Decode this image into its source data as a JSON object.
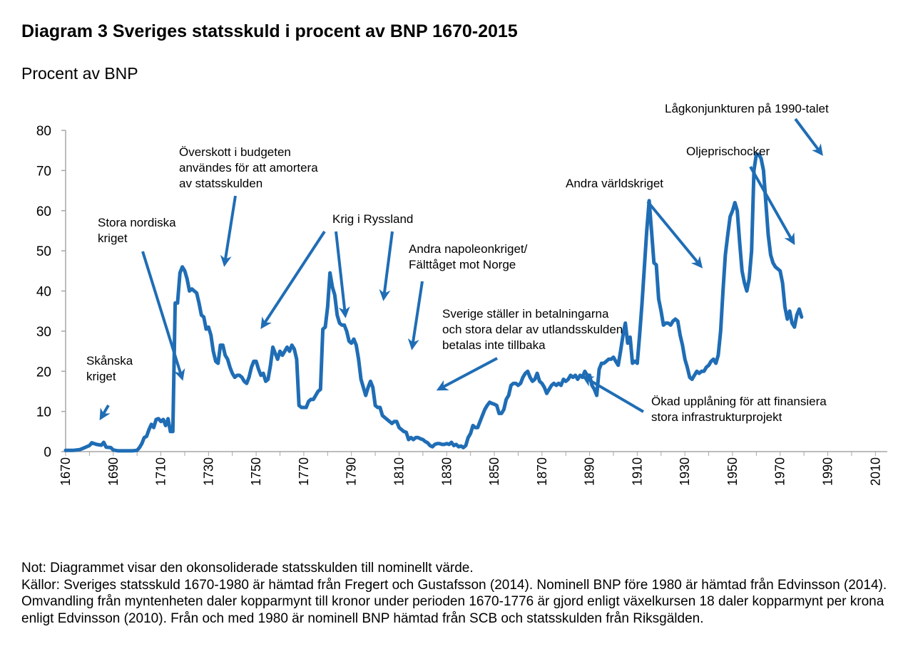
{
  "title": "Diagram 3 Sveriges statsskuld i procent av BNP 1670-2015",
  "unit_label": "Procent av BNP",
  "note": "Not: Diagrammet visar den okonsoliderade statsskulden till nominellt värde.",
  "sources": "Källor: Sveriges statsskuld 1670-1980 är hämtad från Fregert och Gustafsson (2014). Nominell BNP före 1980 är hämtad från Edvinsson (2014). Omvandling från myntenheten daler kopparmynt till kronor under perioden 1670-1776 är gjord enligt växelkursen 18 daler kopparmynt per krona enligt Edvinsson (2010). Från och med 1980 är nominell BNP hämtad från SCB och statsskulden från Riksgälden.",
  "colors": {
    "line": "#1F6DB5",
    "axis": "#A6A6A6",
    "text": "#000000"
  },
  "chart_data": {
    "type": "line",
    "title": "Diagram 3 Sveriges statsskuld i procent av BNP 1670-2015",
    "xlabel": "",
    "ylabel": "Procent av BNP",
    "xlim": [
      1670,
      2015
    ],
    "ylim": [
      0,
      80
    ],
    "yticks": [
      0,
      10,
      20,
      30,
      40,
      50,
      60,
      70,
      80
    ],
    "xticks": [
      1670,
      1690,
      1710,
      1730,
      1750,
      1770,
      1790,
      1810,
      1830,
      1850,
      1870,
      1890,
      1910,
      1930,
      1950,
      1970,
      1990,
      2010
    ],
    "grid": false,
    "series": [
      {
        "color": "#1F6DB5",
        "points": [
          [
            1670,
            0.3
          ],
          [
            1673,
            0.3
          ],
          [
            1676,
            0.5
          ],
          [
            1678,
            1
          ],
          [
            1680,
            1.5
          ],
          [
            1681,
            2.2
          ],
          [
            1683,
            1.8
          ],
          [
            1685,
            1.6
          ],
          [
            1686,
            2.3
          ],
          [
            1687,
            1.1
          ],
          [
            1689,
            1
          ],
          [
            1690,
            0.4
          ],
          [
            1692,
            0.2
          ],
          [
            1695,
            0.2
          ],
          [
            1698,
            0.2
          ],
          [
            1700,
            0.3
          ],
          [
            1701,
            1
          ],
          [
            1702,
            2
          ],
          [
            1703,
            3.5
          ],
          [
            1704,
            3.8
          ],
          [
            1705,
            5.5
          ],
          [
            1706,
            6.8
          ],
          [
            1707,
            6
          ],
          [
            1708,
            8
          ],
          [
            1709,
            8.2
          ],
          [
            1710,
            7.5
          ],
          [
            1711,
            8
          ],
          [
            1712,
            6.5
          ],
          [
            1713,
            8.2
          ],
          [
            1714,
            5
          ],
          [
            1715,
            5
          ],
          [
            1716,
            37
          ],
          [
            1717,
            37
          ],
          [
            1718,
            44.5
          ],
          [
            1719,
            46
          ],
          [
            1720,
            45
          ],
          [
            1721,
            43
          ],
          [
            1722,
            40
          ],
          [
            1723,
            40.5
          ],
          [
            1724,
            40
          ],
          [
            1725,
            39.5
          ],
          [
            1726,
            37
          ],
          [
            1727,
            34
          ],
          [
            1728,
            33.5
          ],
          [
            1729,
            30.5
          ],
          [
            1730,
            31
          ],
          [
            1731,
            29
          ],
          [
            1732,
            25
          ],
          [
            1733,
            22.5
          ],
          [
            1734,
            22
          ],
          [
            1735,
            26.5
          ],
          [
            1736,
            26.5
          ],
          [
            1737,
            24
          ],
          [
            1738,
            23
          ],
          [
            1739,
            21
          ],
          [
            1740,
            19.5
          ],
          [
            1741,
            18.5
          ],
          [
            1742,
            19
          ],
          [
            1743,
            19
          ],
          [
            1744,
            18.5
          ],
          [
            1745,
            17.5
          ],
          [
            1746,
            17
          ],
          [
            1747,
            18.5
          ],
          [
            1748,
            21
          ],
          [
            1749,
            22.5
          ],
          [
            1750,
            22.5
          ],
          [
            1751,
            20.5
          ],
          [
            1752,
            19
          ],
          [
            1753,
            19.5
          ],
          [
            1754,
            17.5
          ],
          [
            1755,
            18
          ],
          [
            1756,
            21.5
          ],
          [
            1757,
            26
          ],
          [
            1758,
            24.5
          ],
          [
            1759,
            23
          ],
          [
            1760,
            25
          ],
          [
            1761,
            24
          ],
          [
            1762,
            25
          ],
          [
            1763,
            26
          ],
          [
            1764,
            25
          ],
          [
            1765,
            26.5
          ],
          [
            1766,
            25.5
          ],
          [
            1767,
            23
          ],
          [
            1768,
            11.5
          ],
          [
            1769,
            11
          ],
          [
            1770,
            11
          ],
          [
            1771,
            11
          ],
          [
            1772,
            12.5
          ],
          [
            1773,
            13
          ],
          [
            1774,
            13
          ],
          [
            1775,
            14
          ],
          [
            1776,
            15
          ],
          [
            1777,
            15.5
          ],
          [
            1778,
            30.5
          ],
          [
            1779,
            31
          ],
          [
            1780,
            36
          ],
          [
            1781,
            44.5
          ],
          [
            1782,
            41
          ],
          [
            1783,
            39
          ],
          [
            1784,
            34
          ],
          [
            1785,
            32
          ],
          [
            1786,
            31.5
          ],
          [
            1787,
            31.5
          ],
          [
            1788,
            30
          ],
          [
            1789,
            27.5
          ],
          [
            1790,
            27
          ],
          [
            1791,
            28
          ],
          [
            1792,
            26.5
          ],
          [
            1793,
            23
          ],
          [
            1794,
            18
          ],
          [
            1795,
            16
          ],
          [
            1796,
            14
          ],
          [
            1797,
            16
          ],
          [
            1798,
            17.5
          ],
          [
            1799,
            16
          ],
          [
            1800,
            11.5
          ],
          [
            1801,
            11
          ],
          [
            1802,
            11
          ],
          [
            1803,
            9
          ],
          [
            1804,
            8.5
          ],
          [
            1805,
            8
          ],
          [
            1806,
            7.5
          ],
          [
            1807,
            7
          ],
          [
            1808,
            7.5
          ],
          [
            1809,
            7.5
          ],
          [
            1810,
            6
          ],
          [
            1811,
            5.5
          ],
          [
            1812,
            5
          ],
          [
            1813,
            4.8
          ],
          [
            1814,
            3
          ],
          [
            1815,
            3.5
          ],
          [
            1816,
            3
          ],
          [
            1817,
            3.5
          ],
          [
            1818,
            3.5
          ],
          [
            1819,
            3.2
          ],
          [
            1820,
            3
          ],
          [
            1821,
            2.5
          ],
          [
            1822,
            2.2
          ],
          [
            1823,
            1.5
          ],
          [
            1824,
            1.2
          ],
          [
            1825,
            1.8
          ],
          [
            1826,
            2
          ],
          [
            1827,
            2
          ],
          [
            1828,
            1.8
          ],
          [
            1829,
            1.8
          ],
          [
            1830,
            2
          ],
          [
            1831,
            1.8
          ],
          [
            1832,
            2.3
          ],
          [
            1833,
            1.5
          ],
          [
            1834,
            1.8
          ],
          [
            1835,
            1.2
          ],
          [
            1836,
            1.4
          ],
          [
            1837,
            1
          ],
          [
            1838,
            1.5
          ],
          [
            1839,
            3.5
          ],
          [
            1840,
            4.5
          ],
          [
            1841,
            6.5
          ],
          [
            1842,
            6
          ],
          [
            1843,
            6
          ],
          [
            1844,
            7.5
          ],
          [
            1845,
            9
          ],
          [
            1846,
            10.5
          ],
          [
            1847,
            11.5
          ],
          [
            1848,
            12.3
          ],
          [
            1849,
            12
          ],
          [
            1850,
            11.8
          ],
          [
            1851,
            11.5
          ],
          [
            1852,
            9.5
          ],
          [
            1853,
            9.5
          ],
          [
            1854,
            10.5
          ],
          [
            1855,
            13
          ],
          [
            1856,
            14
          ],
          [
            1857,
            16.5
          ],
          [
            1858,
            17
          ],
          [
            1859,
            17
          ],
          [
            1860,
            16.5
          ],
          [
            1861,
            17
          ],
          [
            1862,
            18.5
          ],
          [
            1863,
            19.5
          ],
          [
            1864,
            20
          ],
          [
            1865,
            18.5
          ],
          [
            1866,
            17.5
          ],
          [
            1867,
            18
          ],
          [
            1868,
            19.5
          ],
          [
            1869,
            17.5
          ],
          [
            1870,
            17
          ],
          [
            1871,
            16
          ],
          [
            1872,
            14.5
          ],
          [
            1873,
            15.5
          ],
          [
            1874,
            16.5
          ],
          [
            1875,
            17
          ],
          [
            1876,
            16.5
          ],
          [
            1877,
            17
          ],
          [
            1878,
            16.5
          ],
          [
            1879,
            18
          ],
          [
            1880,
            17.5
          ],
          [
            1881,
            18
          ],
          [
            1882,
            19
          ],
          [
            1883,
            18.5
          ],
          [
            1884,
            19
          ],
          [
            1885,
            18
          ],
          [
            1886,
            19
          ],
          [
            1887,
            18.5
          ],
          [
            1888,
            20
          ],
          [
            1889,
            19
          ],
          [
            1890,
            19
          ],
          [
            1891,
            16.5
          ],
          [
            1892,
            15.5
          ],
          [
            1893,
            14
          ],
          [
            1894,
            20.5
          ],
          [
            1895,
            22
          ],
          [
            1896,
            22
          ],
          [
            1897,
            22.5
          ],
          [
            1898,
            23
          ],
          [
            1899,
            23
          ],
          [
            1900,
            23.5
          ],
          [
            1901,
            22.5
          ],
          [
            1902,
            21.5
          ],
          [
            1903,
            25
          ],
          [
            1904,
            29
          ],
          [
            1905,
            32
          ],
          [
            1906,
            27
          ],
          [
            1907,
            28.5
          ],
          [
            1908,
            22
          ],
          [
            1909,
            22.5
          ],
          [
            1910,
            22
          ],
          [
            1911,
            29
          ],
          [
            1912,
            37
          ],
          [
            1913,
            46
          ],
          [
            1914,
            55
          ],
          [
            1915,
            62.5
          ],
          [
            1916,
            55
          ],
          [
            1917,
            47
          ],
          [
            1918,
            46.5
          ],
          [
            1919,
            38
          ],
          [
            1920,
            35
          ],
          [
            1921,
            31.5
          ],
          [
            1922,
            32
          ],
          [
            1923,
            32
          ],
          [
            1924,
            31.5
          ],
          [
            1925,
            32.5
          ],
          [
            1926,
            33
          ],
          [
            1927,
            32.5
          ],
          [
            1928,
            29
          ],
          [
            1929,
            26.5
          ],
          [
            1930,
            23
          ],
          [
            1931,
            21
          ],
          [
            1932,
            18.5
          ],
          [
            1933,
            18
          ],
          [
            1934,
            19
          ],
          [
            1935,
            20
          ],
          [
            1936,
            19.5
          ],
          [
            1937,
            20
          ],
          [
            1938,
            20
          ],
          [
            1939,
            21
          ],
          [
            1940,
            21.5
          ],
          [
            1941,
            22.5
          ],
          [
            1942,
            23
          ],
          [
            1943,
            22
          ],
          [
            1944,
            24
          ],
          [
            1945,
            30
          ],
          [
            1946,
            40
          ],
          [
            1947,
            49
          ],
          [
            1948,
            54
          ],
          [
            1949,
            58.5
          ],
          [
            1950,
            60
          ],
          [
            1951,
            62
          ],
          [
            1952,
            60
          ],
          [
            1953,
            52
          ],
          [
            1954,
            45
          ],
          [
            1955,
            42
          ],
          [
            1956,
            40
          ],
          [
            1957,
            43
          ],
          [
            1958,
            50
          ],
          [
            1959,
            70
          ],
          [
            1960,
            74
          ],
          [
            1961,
            74
          ],
          [
            1962,
            73
          ],
          [
            1963,
            70
          ],
          [
            1964,
            62
          ],
          [
            1965,
            54
          ],
          [
            1966,
            49
          ],
          [
            1967,
            47
          ],
          [
            1968,
            46
          ],
          [
            1969,
            45.5
          ],
          [
            1970,
            45
          ],
          [
            1971,
            42
          ],
          [
            1972,
            36
          ],
          [
            1973,
            33
          ],
          [
            1974,
            35
          ],
          [
            1975,
            32
          ],
          [
            1976,
            31
          ],
          [
            1977,
            34
          ],
          [
            1978,
            35.5
          ],
          [
            1979,
            33.5
          ]
        ]
      }
    ],
    "annotations": [
      {
        "lines": [
          "Skånska",
          "kriget"
        ]
      },
      {
        "lines": [
          "Stora nordiska",
          "kriget"
        ]
      },
      {
        "lines": [
          "Överskott i budgeten",
          "användes för att amortera",
          "av statsskulden"
        ]
      },
      {
        "lines": [
          "Krig i Ryssland"
        ]
      },
      {
        "lines": [
          "Andra napoleonkriget/",
          "Fälttåget mot Norge"
        ]
      },
      {
        "lines": [
          "Sverige ställer in betalningarna",
          "och stora delar av utlandsskulden",
          "betalas inte tillbaka"
        ]
      },
      {
        "lines": [
          "Andra världskriget"
        ]
      },
      {
        "lines": [
          "Oljeprischocker"
        ]
      },
      {
        "lines": [
          "Lågkonjunkturen på 1990-talet"
        ]
      },
      {
        "lines": [
          "Ökad upplåning för att finansiera",
          "stora infrastrukturprojekt"
        ]
      }
    ]
  }
}
